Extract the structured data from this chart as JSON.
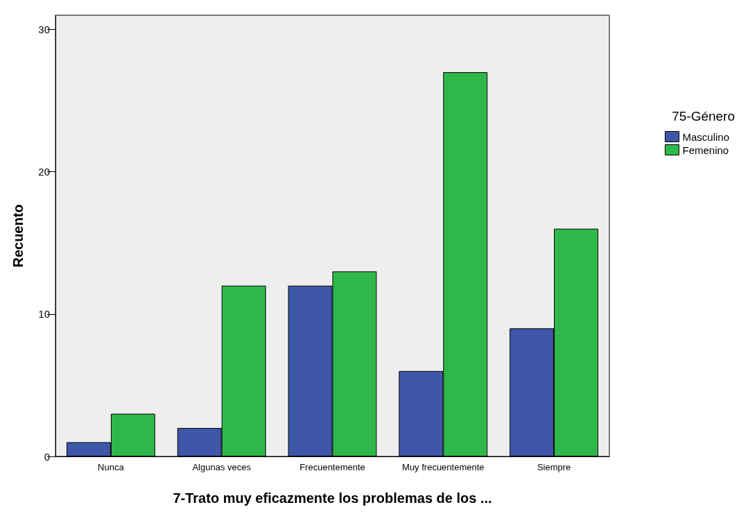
{
  "chart_data": {
    "type": "bar",
    "xlabel": "7-Trato muy eficazmente los problemas de los ...",
    "ylabel": "Recuento",
    "legend_title": "75-Género",
    "categories": [
      "Nunca",
      "Algunas veces",
      "Frecuentemente",
      "Muy frecuentemente",
      "Siempre"
    ],
    "series": [
      {
        "name": "Masculino",
        "color": "#3f57a8",
        "values": [
          1,
          2,
          12,
          6,
          9
        ]
      },
      {
        "name": "Femenino",
        "color": "#2fb84a",
        "values": [
          3,
          12,
          13,
          27,
          16
        ]
      }
    ],
    "ylim": [
      0,
      31
    ],
    "yticks": [
      0,
      10,
      20,
      30
    ],
    "grid": false,
    "legend": "right"
  }
}
